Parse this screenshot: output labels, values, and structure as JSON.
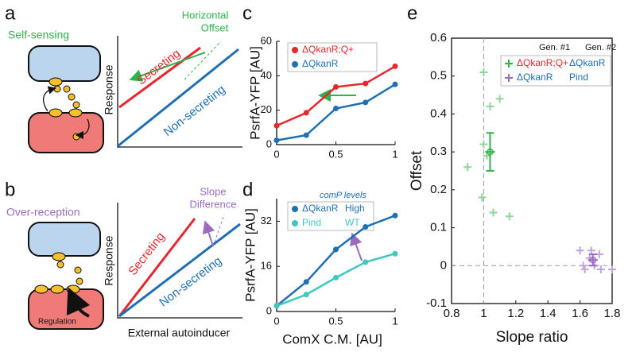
{
  "panels": {
    "a": {
      "letter": "a",
      "label": "Self-sensing",
      "ylabel": "Response",
      "secreting": "Secreting",
      "non_secreting": "Non-secreting",
      "annotation": [
        "Horizontal",
        "Offset"
      ]
    },
    "b": {
      "letter": "b",
      "label": "Over-reception",
      "regulation": "Regulation",
      "ylabel": "Response",
      "secreting": "Secreting",
      "non_secreting": "Non-secreting",
      "annotation": [
        "Slope",
        "Difference"
      ],
      "xlabel": "External autoinducer"
    }
  },
  "chart_data": [
    {
      "type": "line",
      "letter": "c",
      "ylabel": "PsrfA-YFP [AU]",
      "x": [
        0,
        0.25,
        0.5,
        0.75,
        1
      ],
      "series": [
        {
          "name": "ΔQkanR;Q+",
          "color": "#e8262c",
          "values": [
            11,
            18.5,
            33.5,
            35.5,
            45.5
          ]
        },
        {
          "name": "ΔQkanR",
          "color": "#1f6fb4",
          "values": [
            2.5,
            5.5,
            21,
            24.5,
            35
          ]
        }
      ],
      "xlim": [
        0,
        1
      ],
      "xticks": [
        0,
        0.5,
        1
      ],
      "ylim": [
        0,
        60
      ],
      "yticks": [
        0,
        20,
        40,
        60
      ]
    },
    {
      "type": "line",
      "letter": "d",
      "ylabel": "PsrfA-YFP [AU]",
      "xlabel": "ComX C.M. [AU]",
      "legend_title": "comP levels",
      "x": [
        0,
        0.25,
        0.5,
        0.75,
        1
      ],
      "series": [
        {
          "name": "ΔQkanR",
          "level": "High",
          "color": "#1f6fb4",
          "values": [
            2,
            10.5,
            22,
            30,
            34
          ]
        },
        {
          "name": "Pind",
          "level": "WT",
          "color": "#3fc7c0",
          "values": [
            2,
            6,
            12,
            17.5,
            20.5
          ]
        }
      ],
      "xlim": [
        0,
        1
      ],
      "xticks": [
        0,
        0.5,
        1
      ],
      "ylim": [
        0,
        40
      ],
      "yticks": [
        0,
        16,
        32
      ]
    },
    {
      "type": "scatter",
      "letter": "e",
      "xlabel": "Slope ratio",
      "ylabel": "Offset",
      "legend_headers": [
        "Gen. #1",
        "Gen. #2"
      ],
      "series": [
        {
          "name": "ΔQkanR;Q+",
          "gen2": "ΔQkanR",
          "color": "#2cb34a",
          "point_color": "#8fd69a",
          "x": [
            1.0,
            1.04,
            1.1,
            1.0,
            1.02,
            0.9,
            0.99,
            1.06,
            1.16
          ],
          "y": [
            0.51,
            0.42,
            0.44,
            0.32,
            0.29,
            0.26,
            0.18,
            0.14,
            0.13
          ],
          "mean": {
            "x": 1.04,
            "y": 0.3,
            "xerr": 0.03,
            "yerr": 0.05
          }
        },
        {
          "name": "ΔQkanR",
          "gen2": "Pind",
          "color": "#9b6bbf",
          "point_color": "#c2a3dc",
          "x": [
            1.6,
            1.67,
            1.72,
            1.62,
            1.69,
            1.8,
            1.63,
            1.73,
            1.66
          ],
          "y": [
            0.04,
            0.04,
            0.03,
            0.0,
            0.0,
            -0.01,
            -0.01,
            -0.01,
            0.02
          ],
          "mean": {
            "x": 1.68,
            "y": 0.015,
            "xerr": 0.03,
            "yerr": 0.015
          }
        }
      ],
      "xlim": [
        0.8,
        1.8
      ],
      "xticks": [
        0.8,
        1,
        1.2,
        1.4,
        1.6,
        1.8
      ],
      "ylim": [
        -0.1,
        0.6
      ],
      "yticks": [
        -0.1,
        0,
        0.1,
        0.2,
        0.3,
        0.4,
        0.5,
        0.6
      ],
      "vline": 1,
      "hline": 0
    }
  ]
}
